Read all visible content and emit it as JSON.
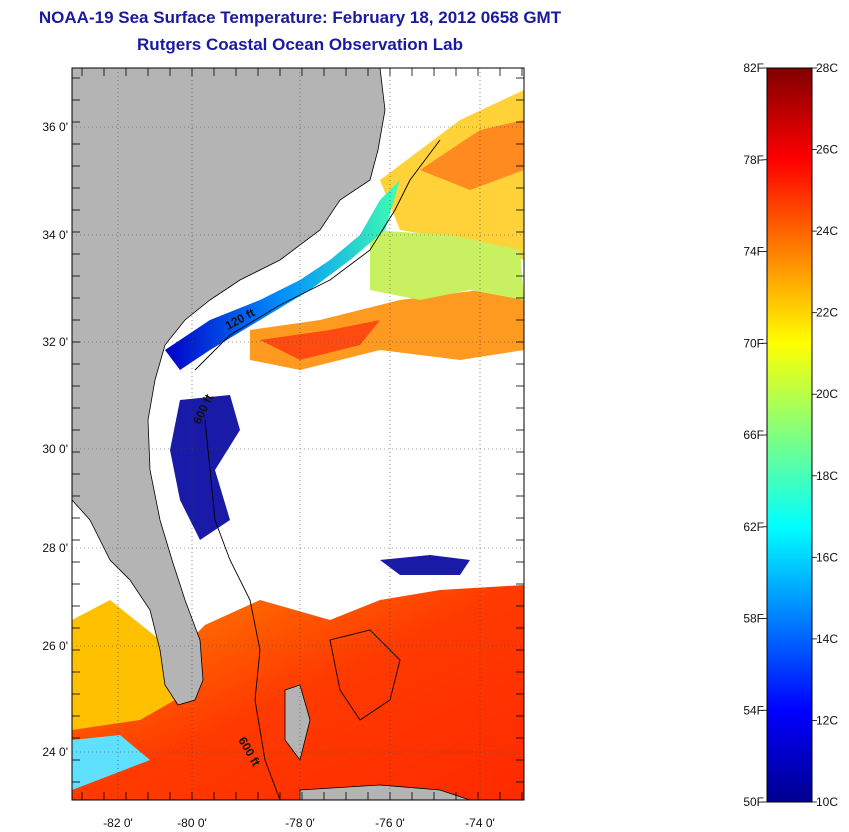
{
  "title": "NOAA-19 Sea Surface Temperature:  February 18, 2012 0658 GMT",
  "subtitle": "Rutgers Coastal Ocean Observation Lab",
  "map": {
    "lat_ticks": [
      "24 0'",
      "26 0'",
      "28 0'",
      "30 0'",
      "32 0'",
      "34 0'",
      "36 0'"
    ],
    "lon_ticks": [
      "-82 0'",
      "-80 0'",
      "-78 0'",
      "-76 0'",
      "-74 0'"
    ],
    "contour_labels": [
      "120 ft",
      "600 ft",
      "600 ft"
    ],
    "land_color": "#b4b4b4",
    "cloud_color": "#ffffff"
  },
  "colorbar": {
    "f_labels": [
      "82F",
      "78F",
      "74F",
      "70F",
      "66F",
      "62F",
      "58F",
      "54F",
      "50F"
    ],
    "c_labels": [
      "28C",
      "26C",
      "24C",
      "22C",
      "20C",
      "18C",
      "16C",
      "14C",
      "12C",
      "10C"
    ],
    "min_c": 10,
    "max_c": 28,
    "colors": [
      "#00008f",
      "#0000ff",
      "#0080ff",
      "#00ffff",
      "#80ff80",
      "#ffff00",
      "#ff8000",
      "#ff0000",
      "#800000"
    ]
  }
}
